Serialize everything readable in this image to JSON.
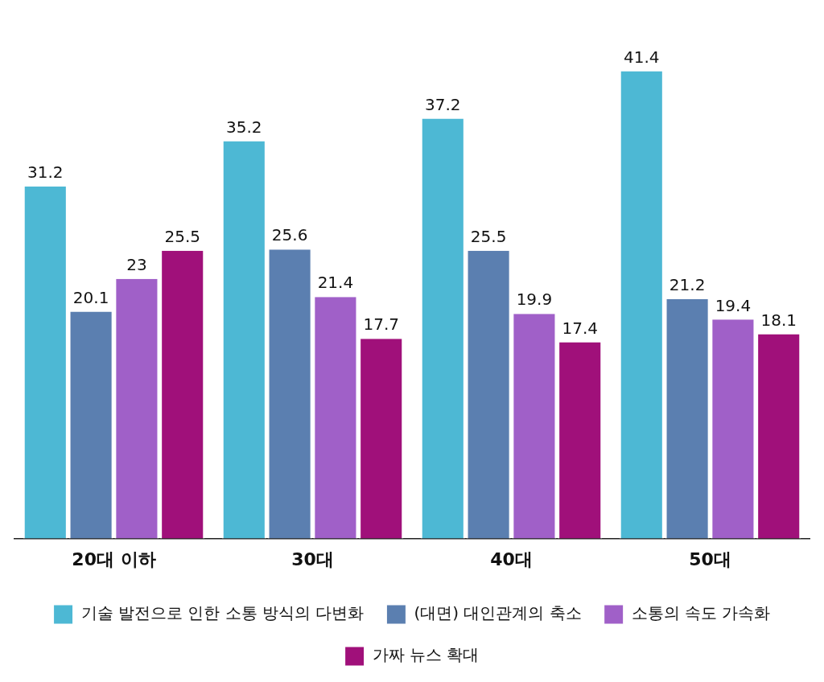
{
  "chart_data": {
    "type": "bar",
    "categories": [
      "20대 이하",
      "30대",
      "40대",
      "50대"
    ],
    "series": [
      {
        "name": "기술 발전으로 인한 소통 방식의 다변화",
        "color": "#4db8d4",
        "values": [
          31.2,
          35.2,
          37.2,
          41.4
        ]
      },
      {
        "name": "(대면) 대인관계의 축소",
        "color": "#5b7fb0",
        "values": [
          20.1,
          25.6,
          25.5,
          21.2
        ]
      },
      {
        "name": "소통의 속도 가속화",
        "color": "#a060c8",
        "values": [
          23,
          21.4,
          19.9,
          19.4
        ]
      },
      {
        "name": "가짜 뉴스 확대",
        "color": "#a0107a",
        "values": [
          25.5,
          17.7,
          17.4,
          18.1
        ]
      }
    ],
    "data_labels": true,
    "legend": "bottom",
    "grid": false
  }
}
